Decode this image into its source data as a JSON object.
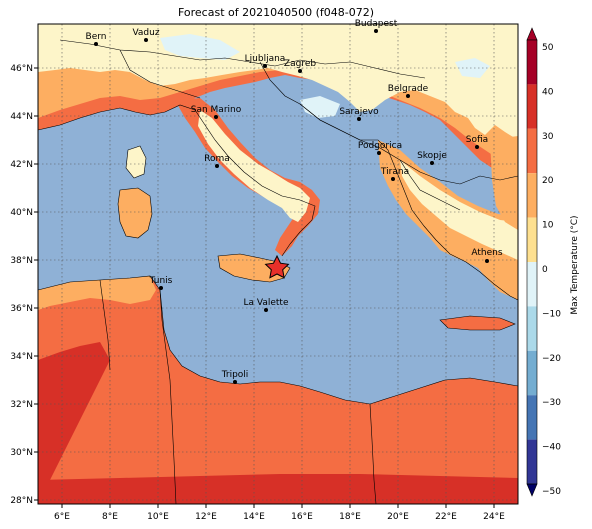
{
  "title": "Forecast of 2021040500 (f048-072)",
  "colorbar": {
    "label": "Max Temperature (°C)",
    "ticks": [
      "50",
      "40",
      "30",
      "20",
      "10",
      "0",
      "−10",
      "−20",
      "−30",
      "−40",
      "−50"
    ],
    "colors": [
      "#a50026",
      "#d73027",
      "#f46d43",
      "#fdae61",
      "#fee090",
      "#e0f3f8",
      "#abd9e9",
      "#74add1",
      "#4575b4",
      "#313695"
    ]
  },
  "axes": {
    "x_ticks": [
      "6°E",
      "8°E",
      "10°E",
      "12°E",
      "14°E",
      "16°E",
      "18°E",
      "20°E",
      "22°E",
      "24°E"
    ],
    "y_ticks": [
      "46°N",
      "44°N",
      "42°N",
      "40°N",
      "38°N",
      "36°N",
      "34°N",
      "32°N",
      "30°N",
      "28°N"
    ]
  },
  "cities": [
    {
      "name": "Bern"
    },
    {
      "name": "Vaduz"
    },
    {
      "name": "Budapest"
    },
    {
      "name": "Ljubljana"
    },
    {
      "name": "Zagreb"
    },
    {
      "name": "Belgrade"
    },
    {
      "name": "San Marino"
    },
    {
      "name": "Sarajevo"
    },
    {
      "name": "Sofia"
    },
    {
      "name": "Podgorica"
    },
    {
      "name": "Skopje"
    },
    {
      "name": "Roma"
    },
    {
      "name": "Tirana"
    },
    {
      "name": "Athens"
    },
    {
      "name": "Tunis"
    },
    {
      "name": "La Valette"
    },
    {
      "name": "Tripoli"
    }
  ],
  "marker": {
    "name": "star-marker",
    "color": "#e8302a"
  },
  "palette": {
    "sea": "#8fb1d6",
    "warm": "#f46d43",
    "light_warm": "#fdae61",
    "cool": "#fdf5c9",
    "ice": "#e0f3f8",
    "hot": "#d73027"
  }
}
